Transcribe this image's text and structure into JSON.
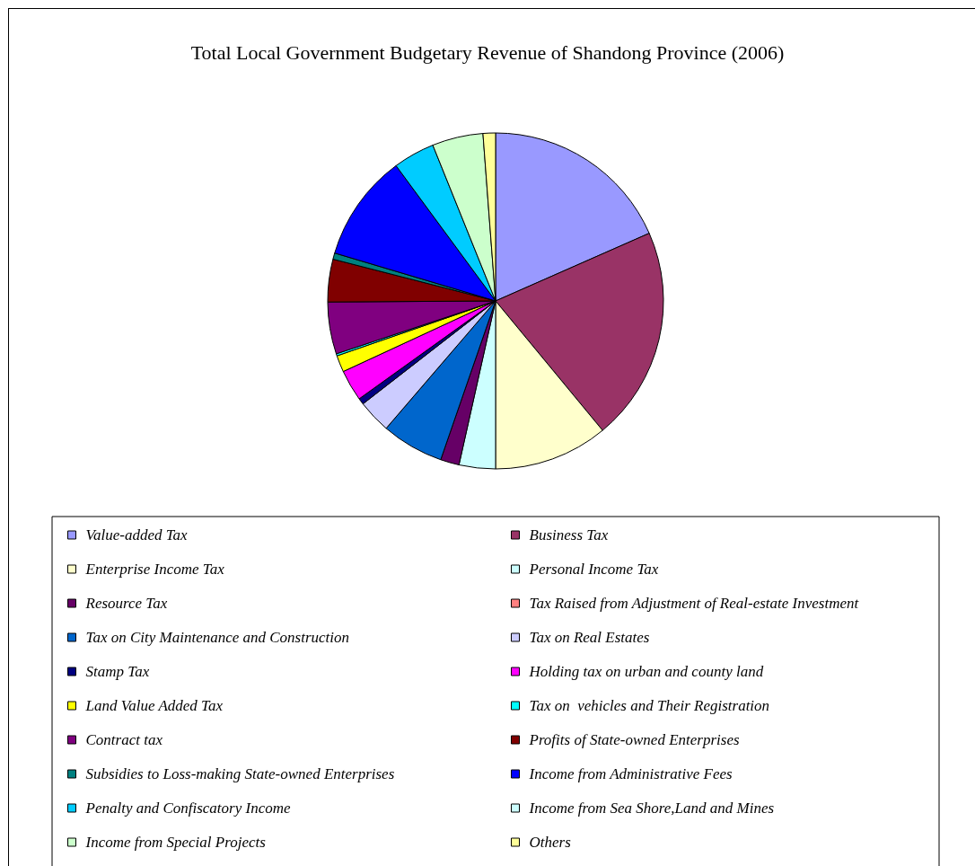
{
  "chart_data": {
    "type": "pie",
    "title": "Total Local Government Budgetary Revenue of Shandong Province (2006)",
    "categories": [
      "Value-added Tax",
      "Business Tax",
      "Enterprise Income Tax",
      "Personal Income Tax",
      "Resource Tax",
      "Tax Raised from Adjustment of Real-estate Investment",
      "Tax on City Maintenance and Construction",
      "Tax on Real Estates",
      "Stamp Tax",
      "Holding tax on urban and county land",
      "Land Value Added Tax",
      "Tax on  vehicles and Their Registration",
      "Contract tax",
      "Profits of State-owned Enterprises",
      "Subsidies to Loss-making State-owned Enterprises",
      "Income from Administrative Fees",
      "Penalty and Confiscatory Income",
      "Income from Sea Shore,Land and Mines",
      "Income from Special Projects",
      "Others"
    ],
    "values": [
      18.4,
      20.6,
      11.0,
      3.5,
      1.8,
      0,
      6.0,
      3.2,
      0.6,
      3.0,
      1.6,
      0.2,
      5.0,
      4.1,
      0.6,
      10.3,
      4.0,
      0,
      4.9,
      1.2
    ],
    "colors": [
      "#9999ff",
      "#993366",
      "#ffffcc",
      "#ccffff",
      "#660066",
      "#ff8080",
      "#0066cc",
      "#ccccff",
      "#000080",
      "#ff00ff",
      "#ffff00",
      "#00ffff",
      "#800080",
      "#800000",
      "#008080",
      "#0000ff",
      "#00ccff",
      "#ccffff",
      "#ccffcc",
      "#ffff99"
    ],
    "legend": "bottom"
  }
}
